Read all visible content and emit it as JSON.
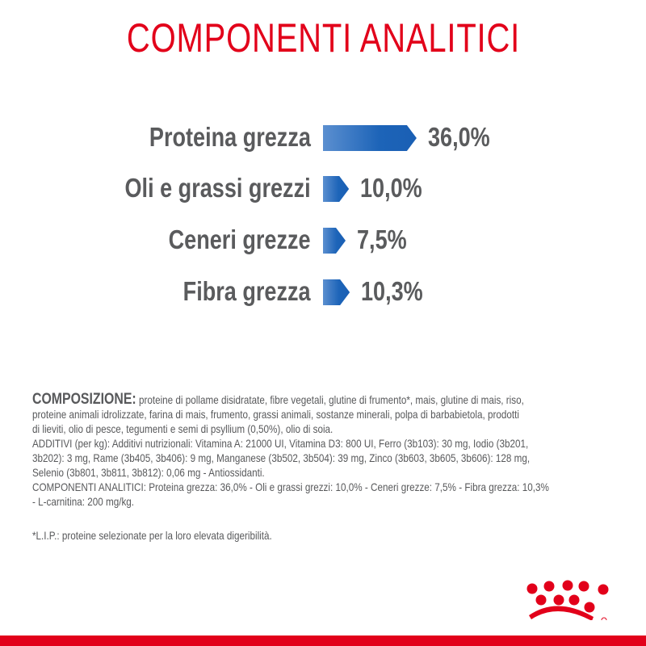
{
  "title": "COMPONENTI ANALITICI",
  "analytics": [
    {
      "label": "Proteina grezza",
      "value": "36,0%",
      "percent": 36.0
    },
    {
      "label": "Oli e grassi grezzi",
      "value": "10,0%",
      "percent": 10.0
    },
    {
      "label": "Ceneri grezze",
      "value": "7,5%",
      "percent": 7.5
    },
    {
      "label": "Fibra grezza",
      "value": "10,3%",
      "percent": 10.3
    }
  ],
  "composition": {
    "heading": "COMPOSIZIONE:",
    "lines": [
      " proteine di pollame disidratate, fibre vegetali, glutine di frumento*, mais, glutine di mais, riso,",
      "proteine animali idrolizzate, farina di mais, frumento, grassi animali, sostanze minerali, polpa di barbabietola, prodotti",
      "di lieviti, olio di pesce, tegumenti e semi di psyllium (0,50%), olio di soia.",
      "ADDITIVI (per kg): Additivi nutrizionali: Vitamina A: 21000 UI, Vitamina D3: 800 UI, Ferro (3b103): 30 mg, Iodio (3b201,",
      "3b202): 3 mg, Rame (3b405, 3b406): 9 mg, Manganese (3b502, 3b504): 39 mg, Zinco (3b603, 3b605, 3b606): 128 mg,",
      "Selenio (3b801, 3b811, 3b812): 0,06 mg - Antiossidanti.",
      "COMPONENTI ANALITICI: Proteina grezza: 36,0% - Oli e grassi grezzi: 10,0% - Ceneri grezze: 7,5% - Fibra grezza: 10,3%",
      "- L-carnitina: 200 mg/kg."
    ],
    "footnote": "*L.I.P.: proteine selezionate per la loro elevata digeribilità."
  },
  "colors": {
    "brand_red": "#e2001a",
    "bar_blue": "#1d64b8",
    "text_gray": "#5a5b5d"
  }
}
